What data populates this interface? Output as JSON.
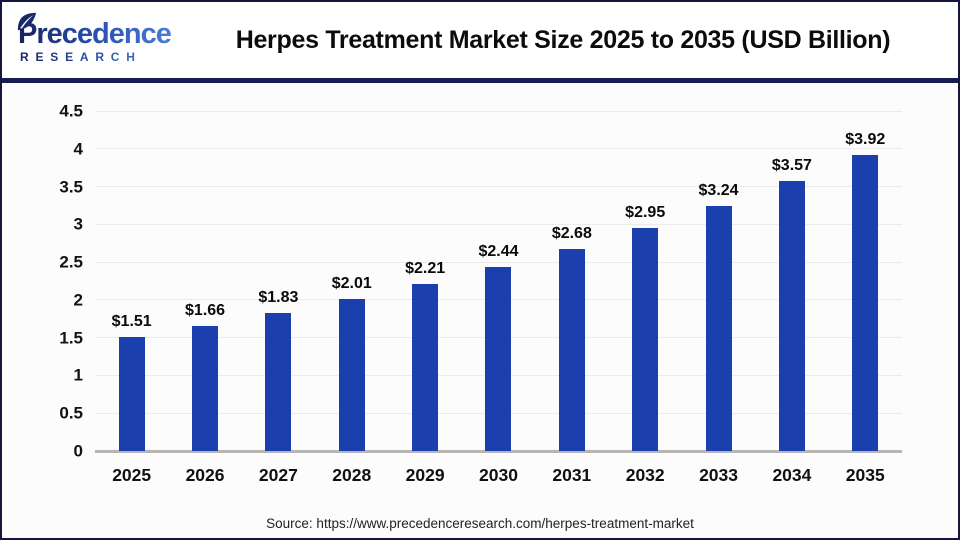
{
  "header": {
    "logo": {
      "name": "Precedence",
      "subname": "RESEARCH"
    },
    "title": "Herpes Treatment Market Size 2025 to 2035 (USD Billion)"
  },
  "chart_data": {
    "type": "bar",
    "title": "Herpes Treatment Market Size 2025 to 2035 (USD Billion)",
    "categories": [
      "2025",
      "2026",
      "2027",
      "2028",
      "2029",
      "2030",
      "2031",
      "2032",
      "2033",
      "2034",
      "2035"
    ],
    "values": [
      1.51,
      1.66,
      1.83,
      2.01,
      2.21,
      2.44,
      2.68,
      2.95,
      3.24,
      3.57,
      3.92
    ],
    "bar_labels": [
      "$1.51",
      "$1.66",
      "$1.83",
      "$2.01",
      "$2.21",
      "$2.44",
      "$2.68",
      "$2.95",
      "$3.24",
      "$3.57",
      "$3.92"
    ],
    "xlabel": "",
    "ylabel": "",
    "ylim": [
      0,
      4.5
    ],
    "ytick_step": 0.5,
    "yticks": [
      "0",
      "0.5",
      "1",
      "1.5",
      "2",
      "2.5",
      "3",
      "3.5",
      "4",
      "4.5"
    ],
    "grid": true,
    "legend": "none",
    "bar_color": "#1c3fae"
  },
  "footer": {
    "source": "Source: https://www.precedenceresearch.com/herpes-treatment-market"
  },
  "colors": {
    "bar": "#1c3fae",
    "divider_navy": "#171d4f",
    "frame_border": "#15163c",
    "gridline": "#ebebeb",
    "axis_line": "#b6b6b6",
    "logo_gradient_start": "#16235e",
    "logo_gradient_end": "#4f86df"
  }
}
